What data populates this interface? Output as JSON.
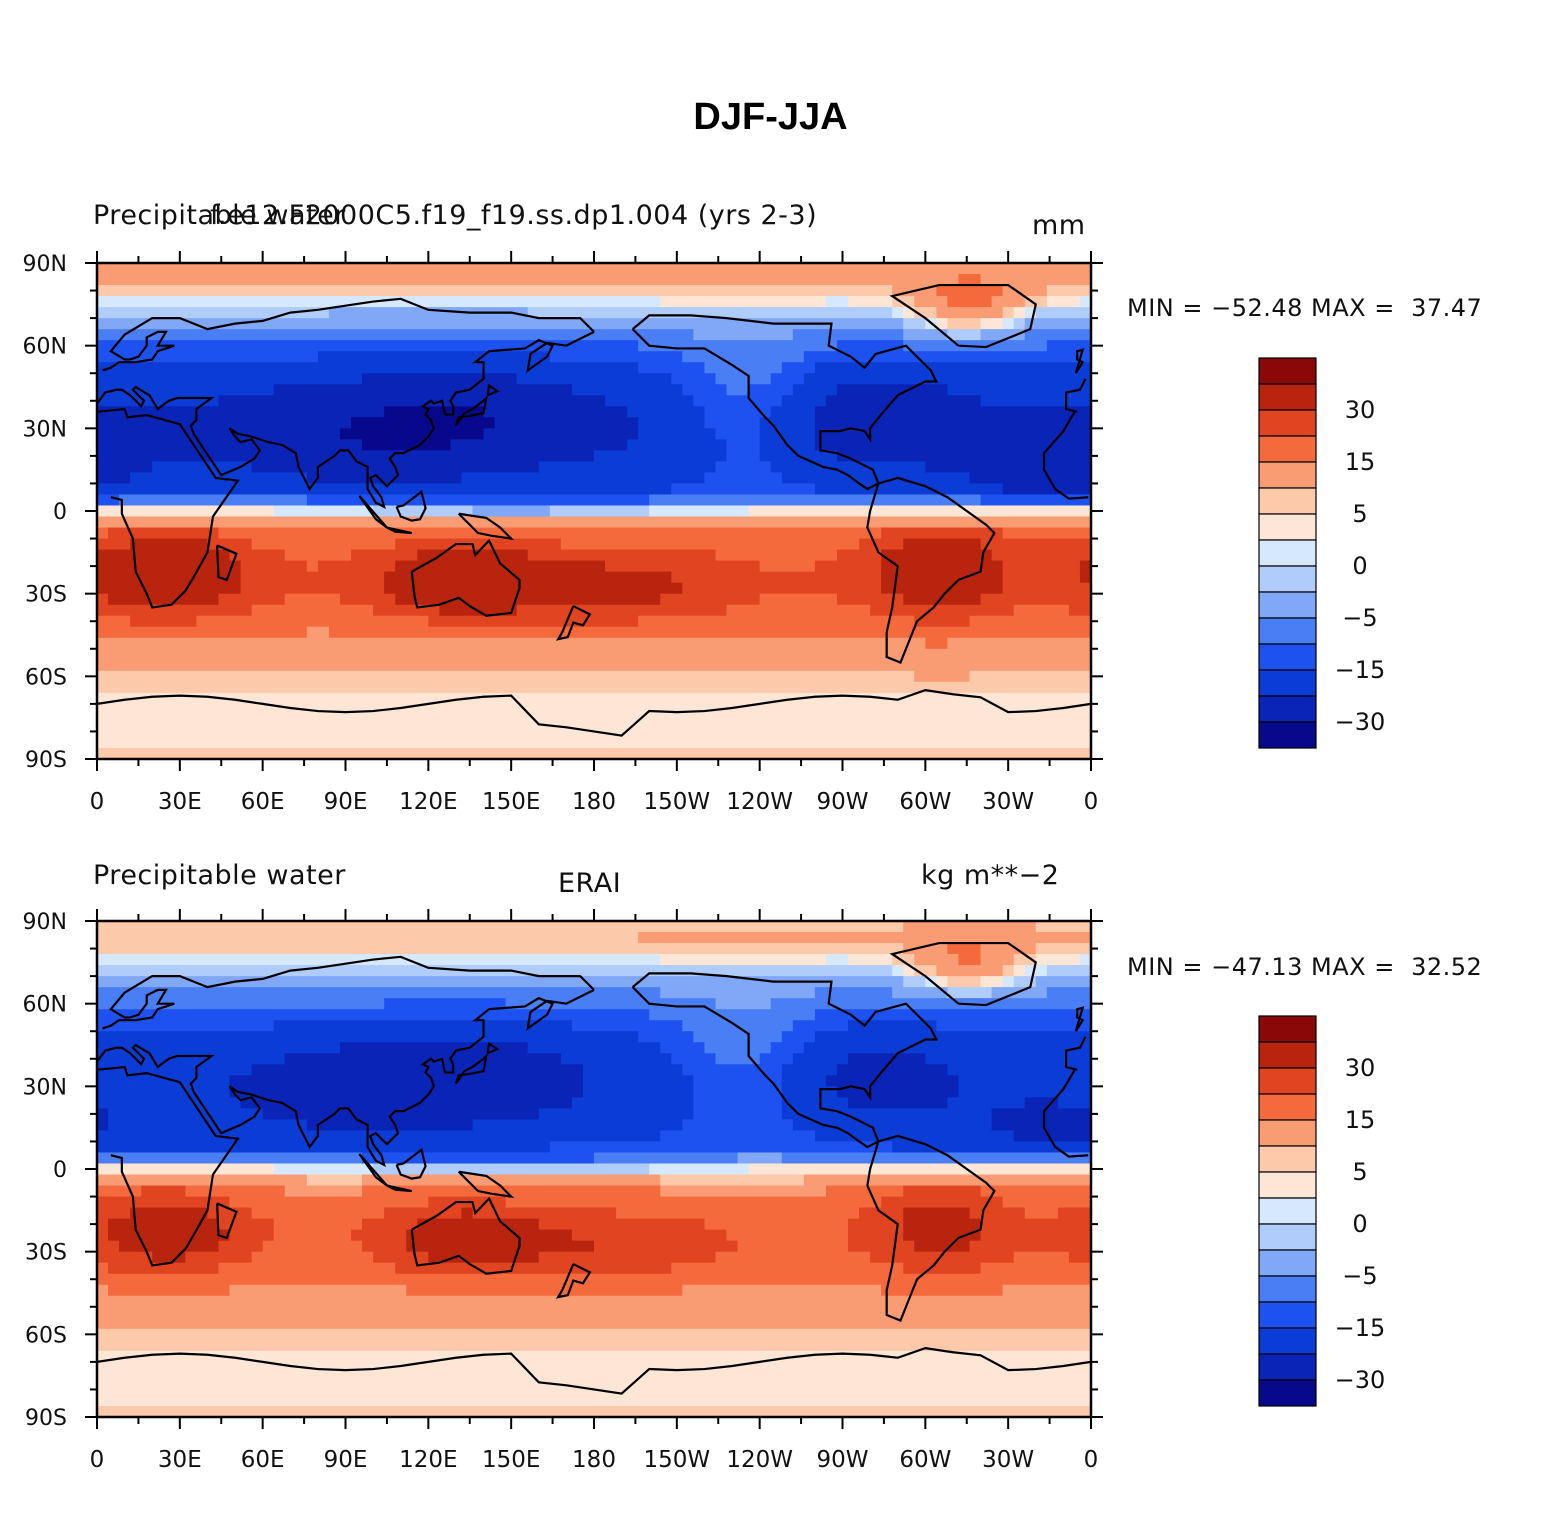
{
  "title": "DJF-JJA",
  "colors": {
    "scale": [
      "#08088c",
      "#0a24b8",
      "#0b3cd6",
      "#1e52f0",
      "#4a7ef5",
      "#80a8f7",
      "#b0ccfa",
      "#d6e8fd",
      "#fde6d6",
      "#fccaaa",
      "#f99c74",
      "#f56a3c",
      "#e14420",
      "#b8240e",
      "#8a0808"
    ],
    "coast": "#000000",
    "frame": "#000000"
  },
  "axes": {
    "x_tick_labels": [
      "0",
      "30E",
      "60E",
      "90E",
      "120E",
      "150E",
      "180",
      "150W",
      "120W",
      "90W",
      "60W",
      "30W",
      "0"
    ],
    "y_tick_labels": [
      "90N",
      "60N",
      "30N",
      "0",
      "30S",
      "60S",
      "90S"
    ]
  },
  "colorbar_labels": [
    "30",
    "15",
    "5",
    "0",
    "−5",
    "−15",
    "−30"
  ],
  "panels": [
    {
      "id": "model",
      "left_title": "Precipitable water",
      "center_title": "f.e12.F2000C5.f19_f19.ss.dp1.004 (yrs 2-3)",
      "right_title": "mm",
      "stats": "MIN = −52.48 MAX =  37.47",
      "min": -52.48,
      "max": 37.47
    },
    {
      "id": "obs",
      "left_title": "Precipitable water",
      "center_title": "ERAI",
      "right_title": "kg m**−2",
      "stats": "MIN = −47.13 MAX =  32.52",
      "min": -47.13,
      "max": 32.52
    }
  ],
  "chart_data": {
    "type": "heatmap",
    "projection": "cylindrical equidistant",
    "xlim": [
      0,
      360
    ],
    "ylim": [
      -90,
      90
    ],
    "contour_levels": [
      -45,
      -30,
      -20,
      -15,
      -10,
      -5,
      -2,
      0,
      2,
      5,
      10,
      15,
      20,
      30,
      45
    ],
    "series": [
      {
        "name": "f.e12.F2000C5.f19_f19.ss.dp1.004 (yrs 2-3)",
        "min": -52.48,
        "max": 37.47
      },
      {
        "name": "ERAI",
        "min": -47.13,
        "max": 32.52
      }
    ]
  }
}
